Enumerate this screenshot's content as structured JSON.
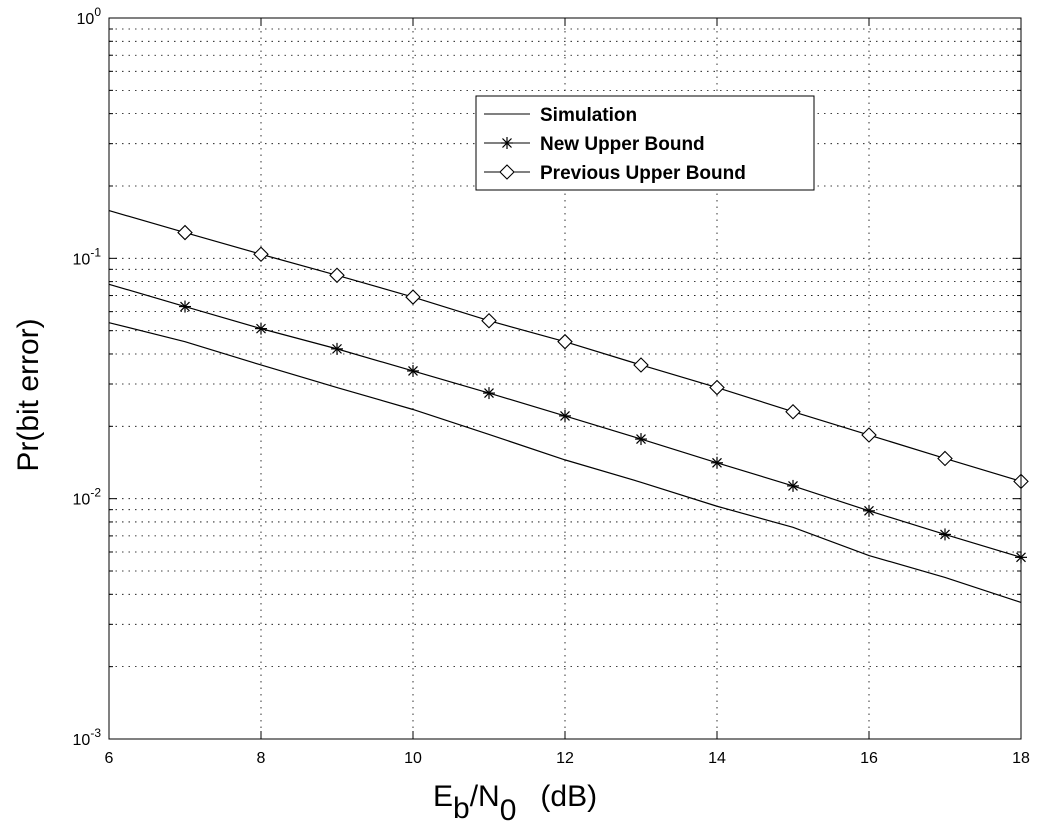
{
  "chart_data": {
    "type": "line",
    "title": "",
    "xlabel": "E_b/N_0 (dB)",
    "xlabel_parts": {
      "E": "E",
      "b": "b",
      "slash_N": "/N",
      "sub0": "0",
      "unit": "(dB)"
    },
    "ylabel": "Pr(bit error)",
    "xlim": [
      6,
      18
    ],
    "ylim": [
      0.001,
      1
    ],
    "yscale": "log",
    "grid": true,
    "grid_style": "dotted",
    "legend_position": "upper-center",
    "x_ticks": [
      {
        "value": 6,
        "label": "6"
      },
      {
        "value": 8,
        "label": "8"
      },
      {
        "value": 10,
        "label": "10"
      },
      {
        "value": 12,
        "label": "12"
      },
      {
        "value": 14,
        "label": "14"
      },
      {
        "value": 16,
        "label": "16"
      },
      {
        "value": 18,
        "label": "18"
      }
    ],
    "y_ticks": [
      {
        "value": 1,
        "base": "10",
        "exp": "0"
      },
      {
        "value": 0.1,
        "base": "10",
        "exp": "-1"
      },
      {
        "value": 0.01,
        "base": "10",
        "exp": "-2"
      },
      {
        "value": 0.001,
        "base": "10",
        "exp": "-3"
      }
    ],
    "series": [
      {
        "name": "Simulation",
        "color": "#000000",
        "marker": "none",
        "x": [
          6,
          7,
          8,
          9,
          10,
          11,
          12,
          13,
          14,
          15,
          16,
          17,
          18
        ],
        "y": [
          0.054,
          0.045,
          0.036,
          0.029,
          0.0235,
          0.0185,
          0.0145,
          0.0117,
          0.0093,
          0.0076,
          0.0058,
          0.0047,
          0.0037
        ]
      },
      {
        "name": "New Upper Bound",
        "color": "#000000",
        "marker": "star",
        "x": [
          6,
          7,
          8,
          9,
          10,
          11,
          12,
          13,
          14,
          15,
          16,
          17,
          18
        ],
        "y": [
          0.078,
          0.063,
          0.051,
          0.042,
          0.034,
          0.0275,
          0.0221,
          0.0177,
          0.0141,
          0.0113,
          0.0089,
          0.0071,
          0.0057
        ],
        "marker_x": [
          7,
          8,
          9,
          10,
          11,
          12,
          13,
          14,
          15,
          16,
          17,
          18
        ]
      },
      {
        "name": "Previous Upper Bound",
        "color": "#000000",
        "marker": "diamond",
        "x": [
          6,
          7,
          8,
          9,
          10,
          11,
          12,
          13,
          14,
          15,
          16,
          17,
          18
        ],
        "y": [
          0.158,
          0.128,
          0.104,
          0.085,
          0.069,
          0.055,
          0.045,
          0.036,
          0.029,
          0.023,
          0.0184,
          0.0147,
          0.0118
        ],
        "marker_x": [
          7,
          8,
          9,
          10,
          11,
          12,
          13,
          14,
          15,
          16,
          17,
          18
        ]
      }
    ]
  }
}
